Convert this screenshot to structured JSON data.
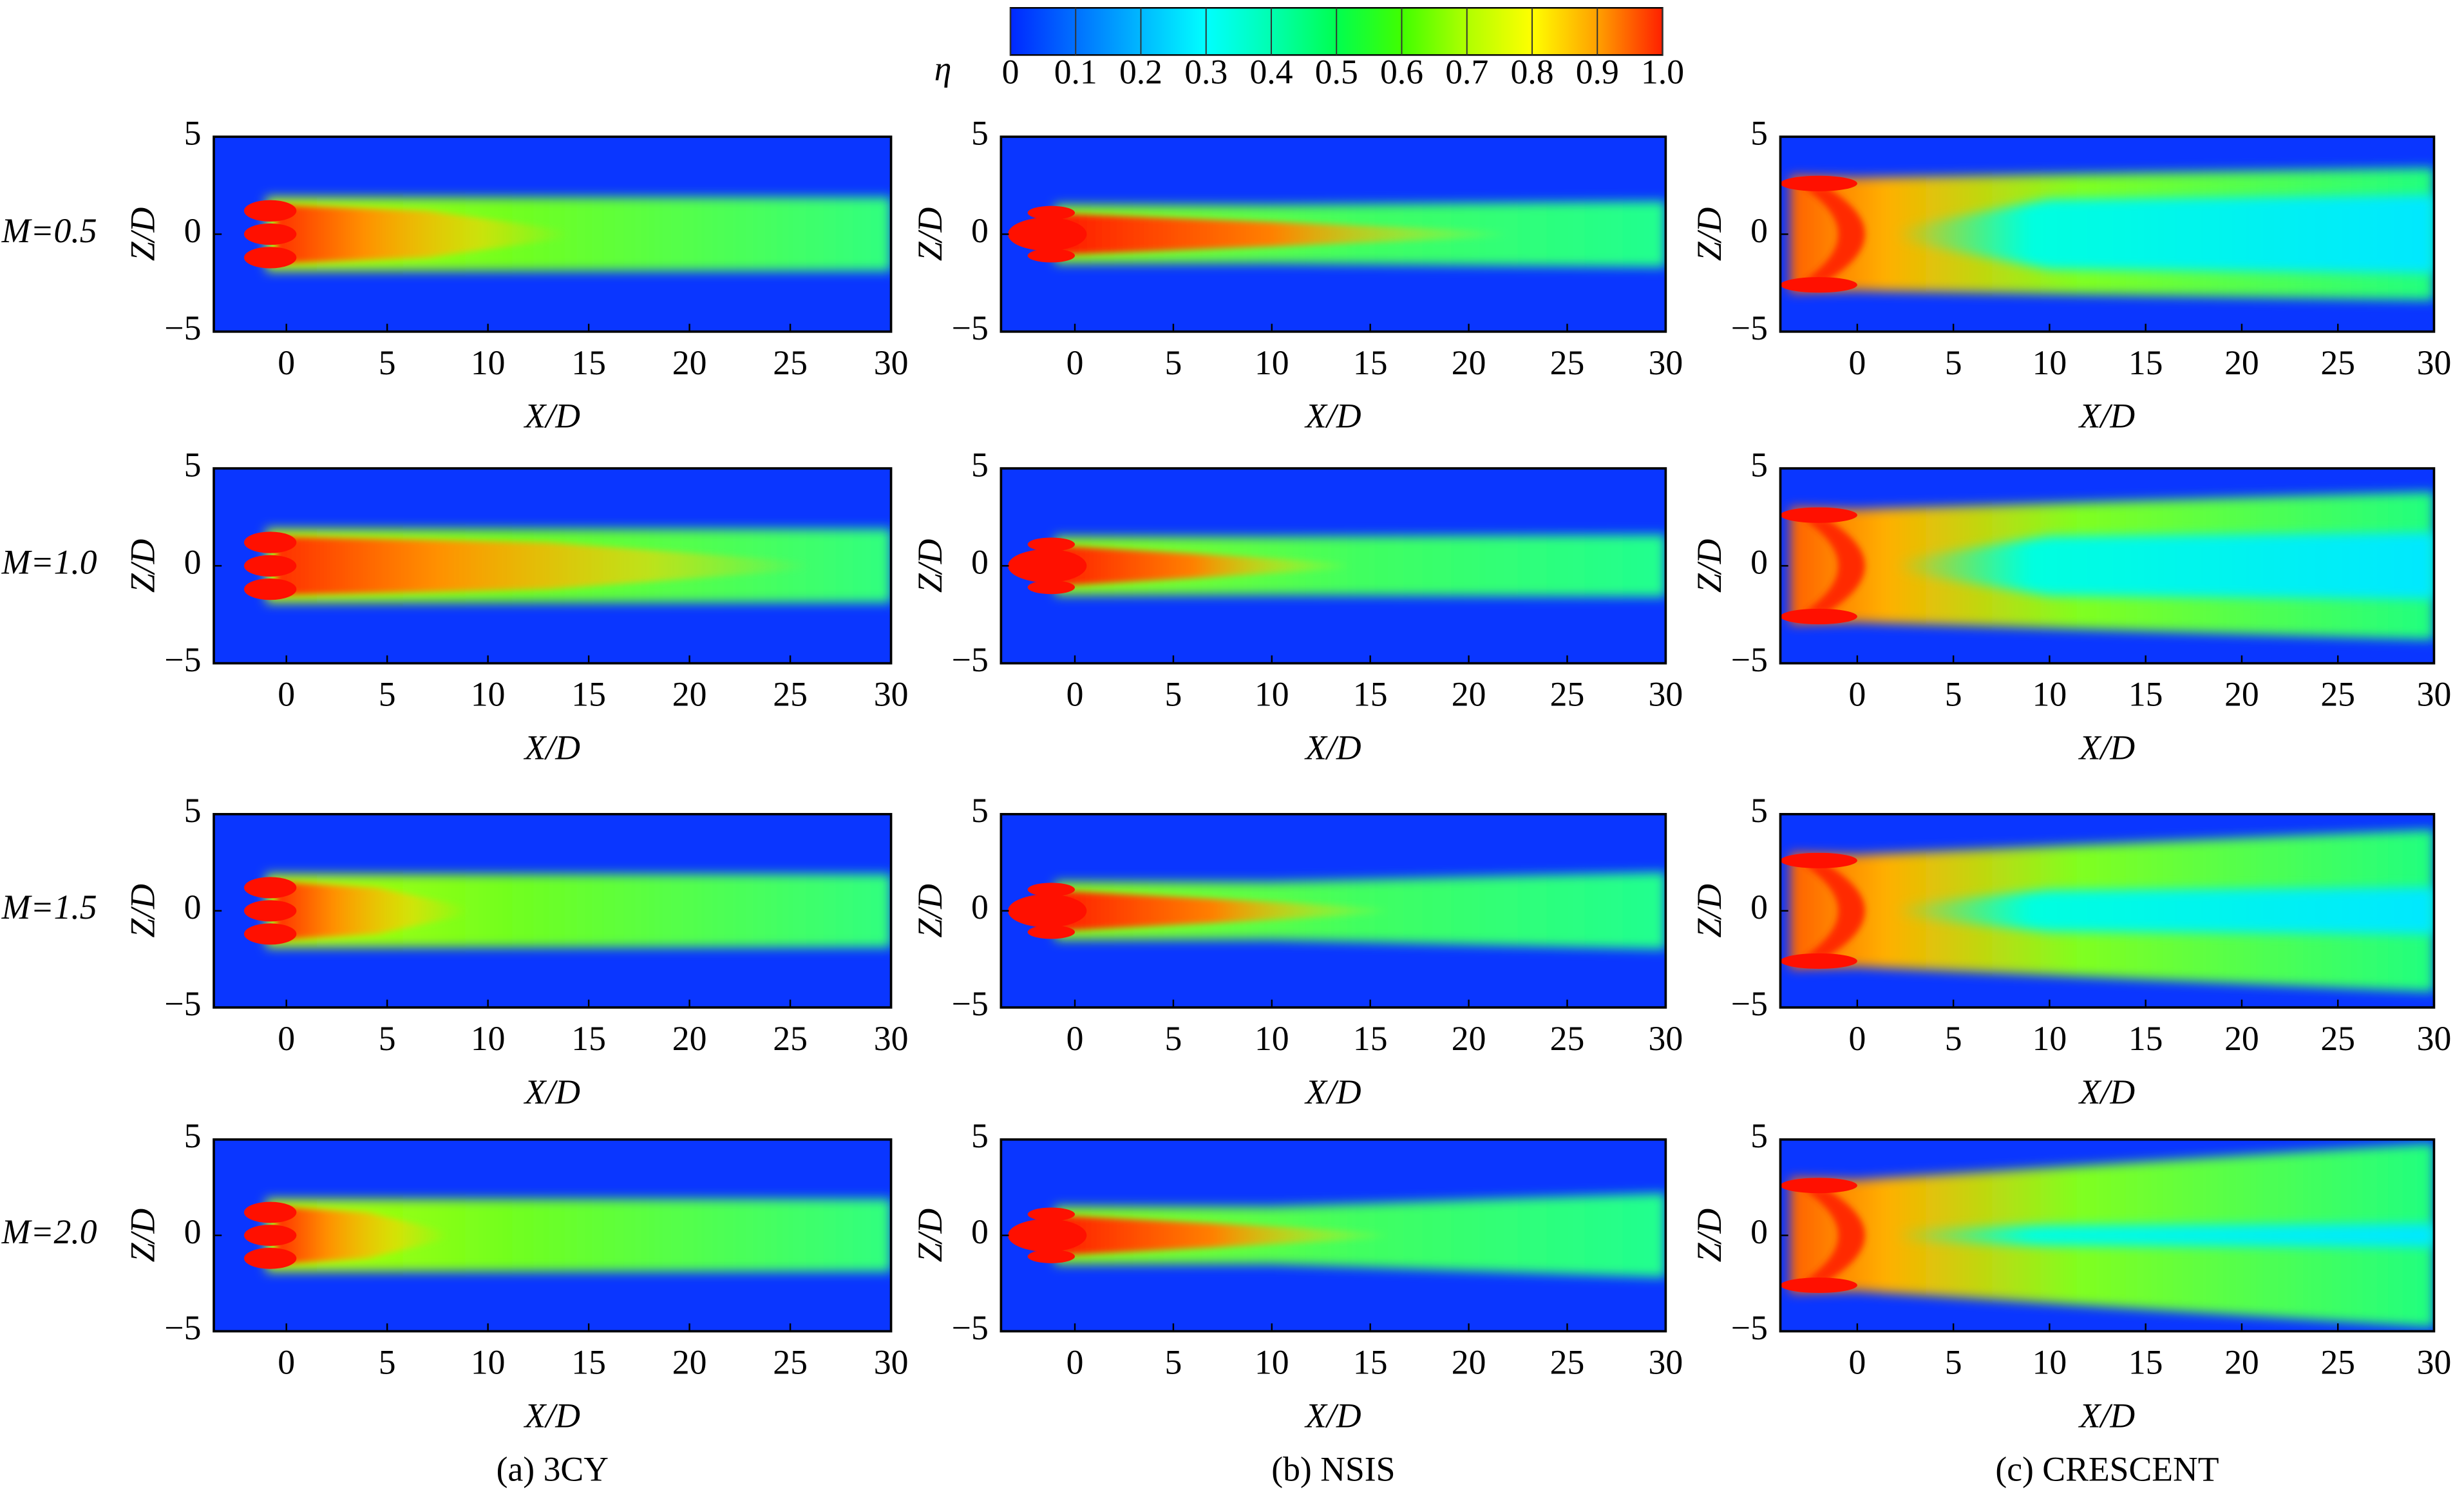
{
  "colorbar": {
    "label": "η",
    "lim": [
      0,
      1
    ],
    "ticks": [
      0,
      0.1,
      0.2,
      0.3,
      0.4,
      0.5,
      0.6,
      0.7,
      0.8,
      0.9,
      {
        "value": 1,
        "label": "1.0"
      }
    ],
    "colors": [
      "#0028ff",
      "#0070ff",
      "#00b8ff",
      "#00ffff",
      "#00ffb0",
      "#00ff50",
      "#40ff00",
      "#b0ff00",
      "#ffff00",
      "#ffa000",
      "#ff2000"
    ]
  },
  "row_labels": [
    "M=0.5",
    "M=1.0",
    "M=1.5",
    "M=2.0"
  ],
  "column_captions": [
    "(a) 3CY",
    "(b) NSIS",
    "(c) CRESCENT"
  ],
  "chart_data": [
    {
      "type": "contour",
      "xlabel": "X/D",
      "ylabel": "Z/D",
      "xlim": [
        -3.6,
        30
      ],
      "ylim": [
        -5,
        5
      ],
      "xticks": [
        0,
        5,
        10,
        15,
        20,
        25,
        30
      ],
      "yticks": [
        {
          "value": -5,
          "label": "−5"
        },
        0,
        5
      ]
    },
    {
      "type": "contour",
      "xlabel": "X/D",
      "ylabel": "Z/D",
      "xlim": [
        -3.75,
        30
      ],
      "ylim": [
        -5,
        5
      ],
      "xticks": [
        0,
        5,
        10,
        15,
        20,
        25,
        30
      ],
      "yticks": [
        {
          "value": -5,
          "label": "−5"
        },
        0,
        5
      ]
    },
    {
      "type": "contour",
      "xlabel": "X/D",
      "ylabel": "Z/D",
      "xlim": [
        -4,
        30
      ],
      "ylim": [
        -5,
        5
      ],
      "xticks": [
        0,
        5,
        10,
        15,
        20,
        25,
        30
      ],
      "yticks": [
        {
          "value": -5,
          "label": "−5"
        },
        0,
        5
      ]
    },
    {
      "type": "contour",
      "xlabel": "X/D",
      "ylabel": "Z/D",
      "xlim": [
        -3.6,
        30
      ],
      "ylim": [
        -5,
        5
      ],
      "xticks": [
        0,
        5,
        10,
        15,
        20,
        25,
        30
      ],
      "yticks": [
        {
          "value": -5,
          "label": "−5"
        },
        0,
        5
      ]
    },
    {
      "type": "contour",
      "xlabel": "X/D",
      "ylabel": "Z/D",
      "xlim": [
        -3.75,
        30
      ],
      "ylim": [
        -5,
        5
      ],
      "xticks": [
        0,
        5,
        10,
        15,
        20,
        25,
        30
      ],
      "yticks": [
        {
          "value": -5,
          "label": "−5"
        },
        0,
        5
      ]
    },
    {
      "type": "contour",
      "xlabel": "X/D",
      "ylabel": "Z/D",
      "xlim": [
        -4,
        30
      ],
      "ylim": [
        -5,
        5
      ],
      "xticks": [
        0,
        5,
        10,
        15,
        20,
        25,
        30
      ],
      "yticks": [
        {
          "value": -5,
          "label": "−5"
        },
        0,
        5
      ]
    },
    {
      "type": "contour",
      "xlabel": "X/D",
      "ylabel": "Z/D",
      "xlim": [
        -3.6,
        30
      ],
      "ylim": [
        -5,
        5
      ],
      "xticks": [
        0,
        5,
        10,
        15,
        20,
        25,
        30
      ],
      "yticks": [
        {
          "value": -5,
          "label": "−5"
        },
        0,
        5
      ]
    },
    {
      "type": "contour",
      "xlabel": "X/D",
      "ylabel": "Z/D",
      "xlim": [
        -3.75,
        30
      ],
      "ylim": [
        -5,
        5
      ],
      "xticks": [
        0,
        5,
        10,
        15,
        20,
        25,
        30
      ],
      "yticks": [
        {
          "value": -5,
          "label": "−5"
        },
        0,
        5
      ]
    },
    {
      "type": "contour",
      "xlabel": "X/D",
      "ylabel": "Z/D",
      "xlim": [
        -4,
        30
      ],
      "ylim": [
        -5,
        5
      ],
      "xticks": [
        0,
        5,
        10,
        15,
        20,
        25,
        30
      ],
      "yticks": [
        {
          "value": -5,
          "label": "−5"
        },
        0,
        5
      ]
    },
    {
      "type": "contour",
      "xlabel": "X/D",
      "ylabel": "Z/D",
      "xlim": [
        -3.6,
        30
      ],
      "ylim": [
        -5,
        5
      ],
      "xticks": [
        0,
        5,
        10,
        15,
        20,
        25,
        30
      ],
      "yticks": [
        {
          "value": -5,
          "label": "−5"
        },
        0,
        5
      ]
    },
    {
      "type": "contour",
      "xlabel": "X/D",
      "ylabel": "Z/D",
      "xlim": [
        -3.75,
        30
      ],
      "ylim": [
        -5,
        5
      ],
      "xticks": [
        0,
        5,
        10,
        15,
        20,
        25,
        30
      ],
      "yticks": [
        {
          "value": -5,
          "label": "−5"
        },
        0,
        5
      ]
    },
    {
      "type": "contour",
      "xlabel": "X/D",
      "ylabel": "Z/D",
      "xlim": [
        -4,
        30
      ],
      "ylim": [
        -5,
        5
      ],
      "xticks": [
        0,
        5,
        10,
        15,
        20,
        25,
        30
      ],
      "yticks": [
        {
          "value": -5,
          "label": "−5"
        },
        0,
        5
      ]
    }
  ]
}
